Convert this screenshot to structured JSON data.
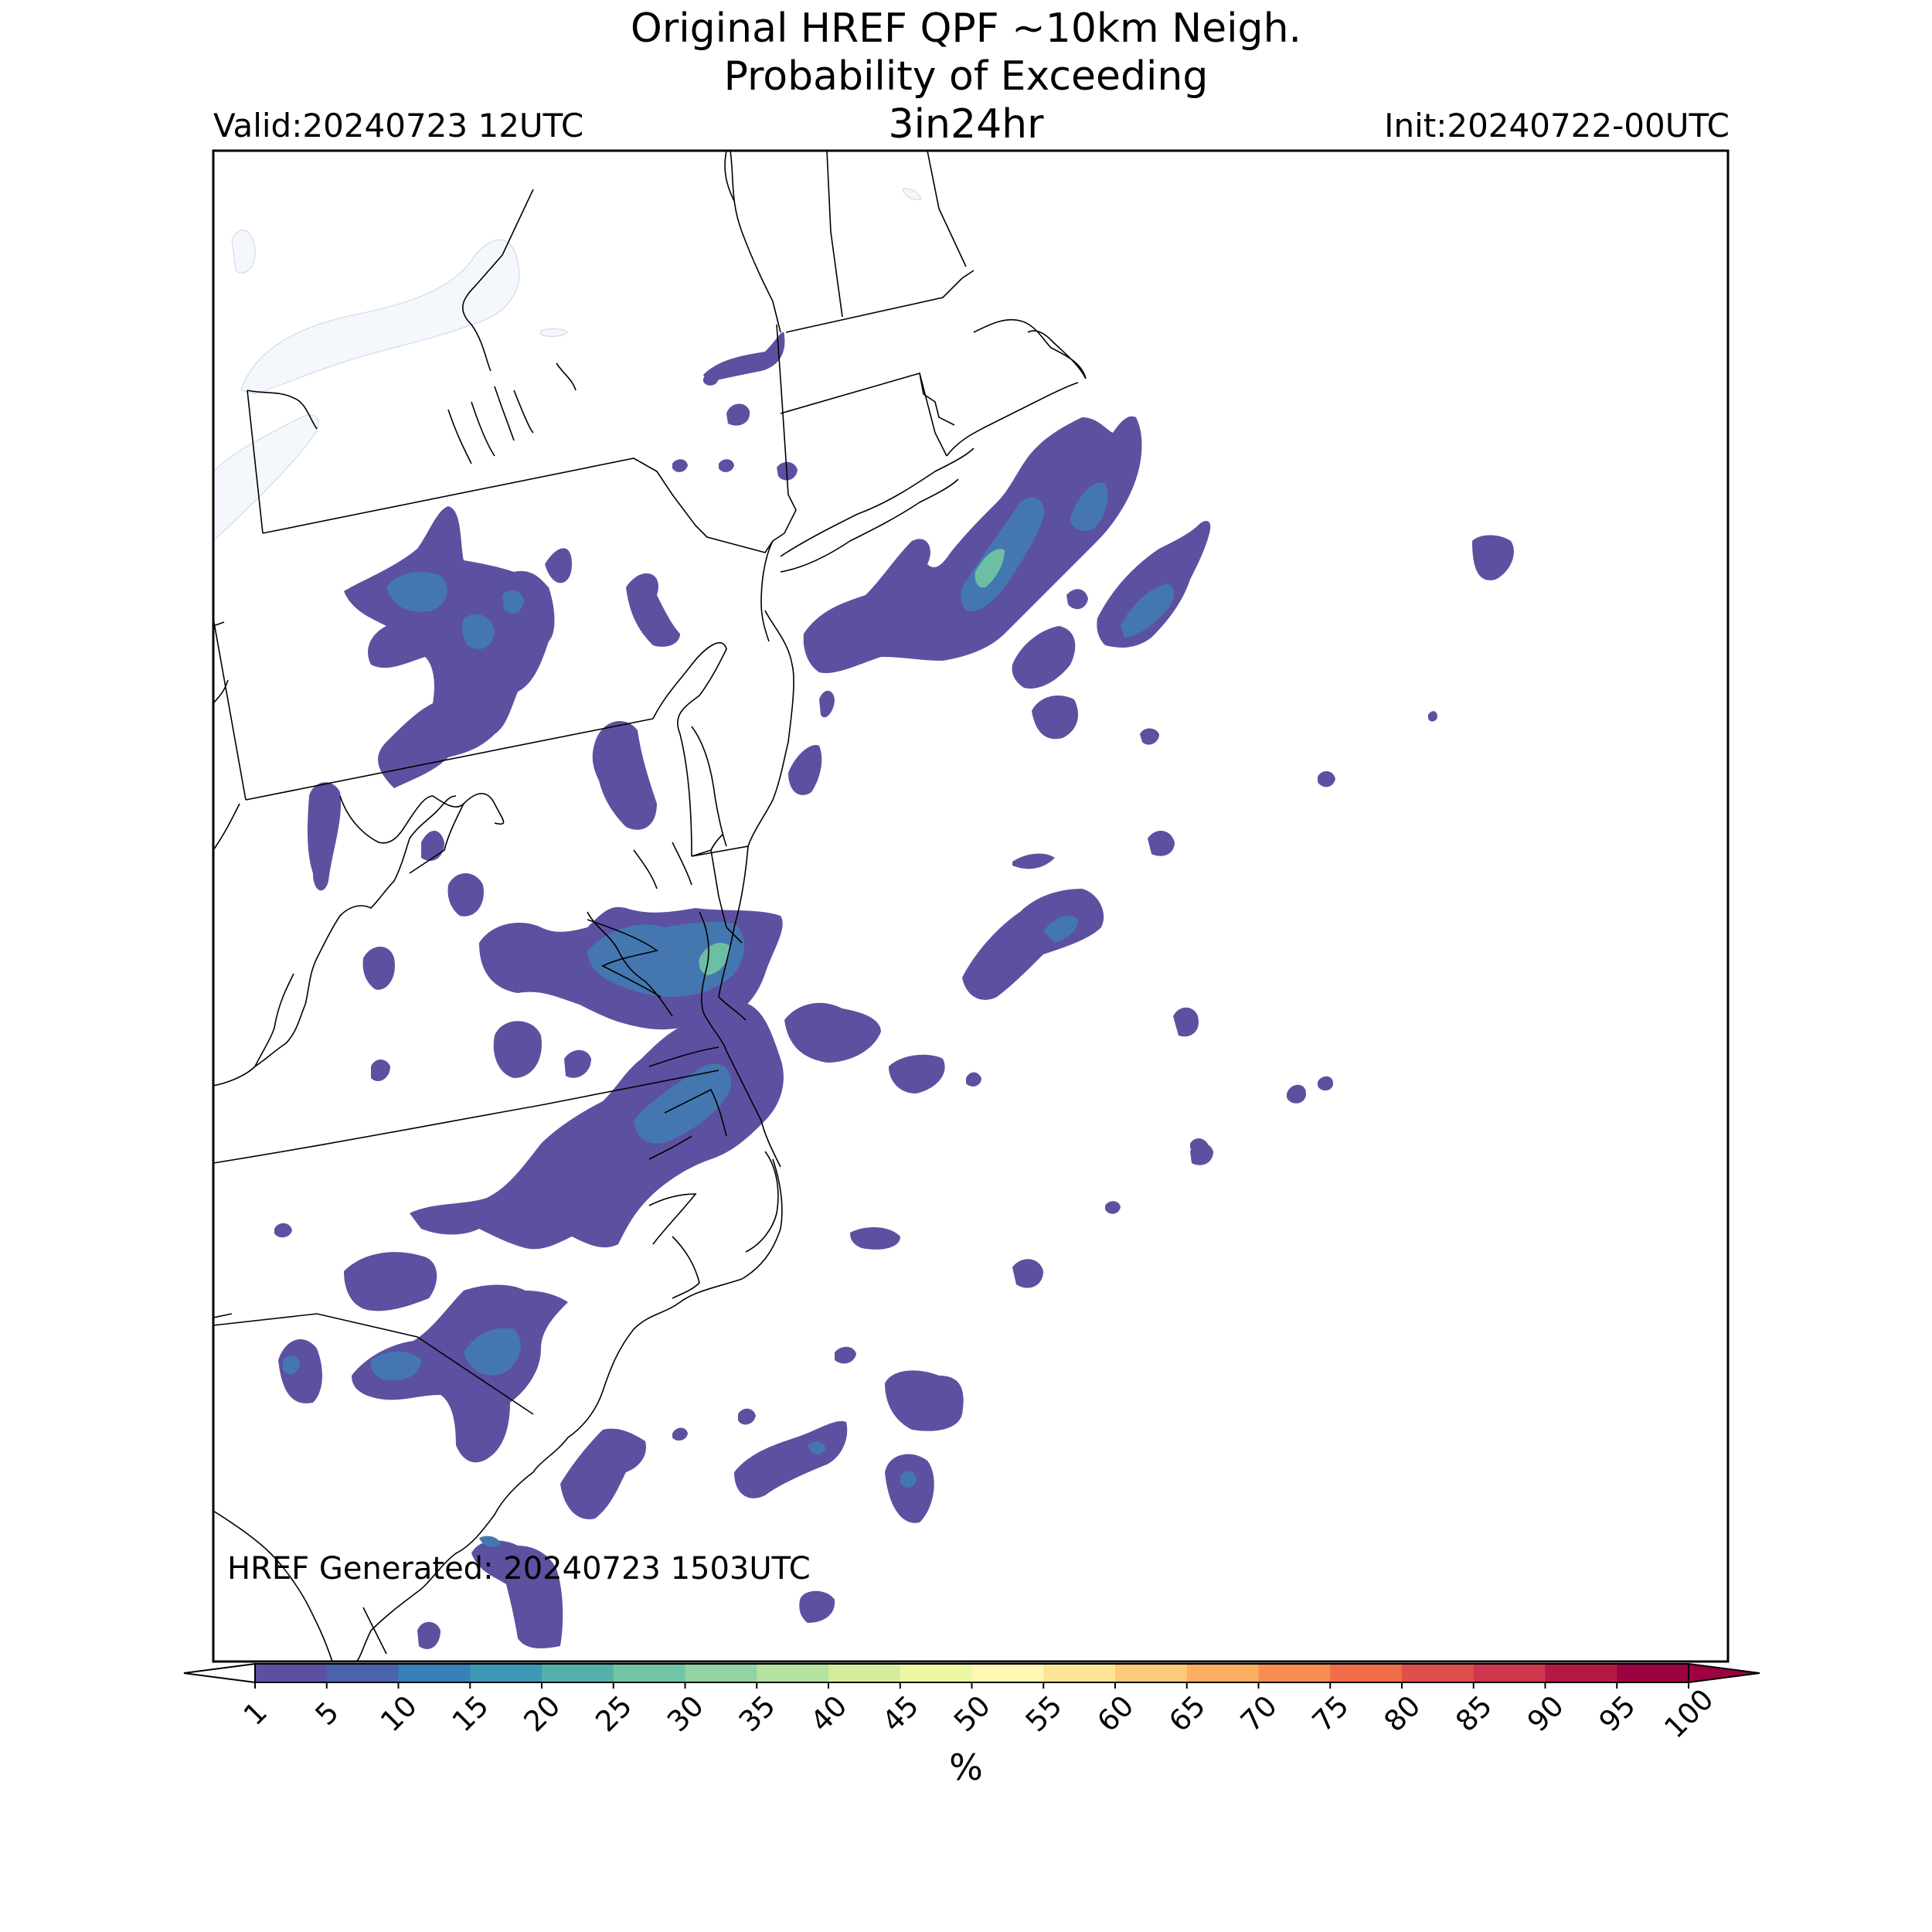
{
  "title": {
    "line1": "Original HREF QPF ~10km Neigh.",
    "line2": "Probability of Exceeding",
    "line3": "3in24hr"
  },
  "valid_label": "Valid:20240723 12UTC",
  "init_label": "Init:20240722-00UTC",
  "generated_label": "HREF Generated: 20240723 1503UTC",
  "colorbar": {
    "unit": "%",
    "ticks": [
      "1",
      "5",
      "10",
      "15",
      "20",
      "25",
      "30",
      "35",
      "40",
      "45",
      "50",
      "55",
      "60",
      "65",
      "70",
      "75",
      "80",
      "85",
      "90",
      "95",
      "100"
    ],
    "colors": [
      "#5e4fa2",
      "#4964ac",
      "#3880b9",
      "#3d98b6",
      "#55b0ab",
      "#71c5a5",
      "#92d3a4",
      "#b5e1a1",
      "#d3ed9c",
      "#edf7a2",
      "#fff7b2",
      "#fee495",
      "#fdcb7a",
      "#fdae61",
      "#f88d52",
      "#f16c48",
      "#e04f4a",
      "#ce374c",
      "#b41946",
      "#9e0142"
    ],
    "under_color": "#ffffff",
    "over_color": "#9e0142"
  },
  "colors": {
    "water": "#f4f7fb",
    "border": "#000000",
    "prob_low": "#5c51a1",
    "prob_mid": "#4477b0",
    "prob_high": "#6dbfa4"
  }
}
